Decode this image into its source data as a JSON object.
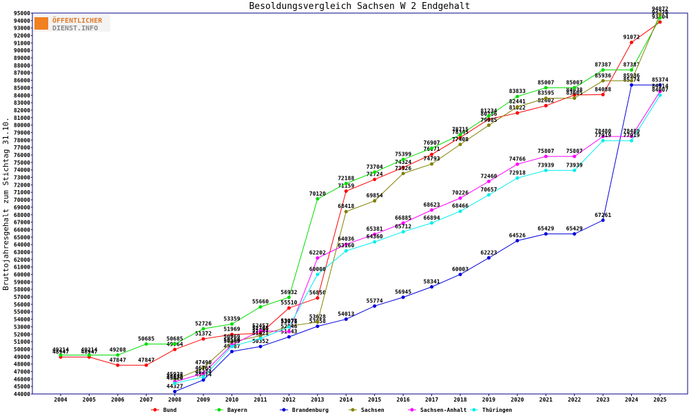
{
  "chart_data": {
    "type": "line",
    "title": "Besoldungsvergleich Sachsen W 2 Endgehalt",
    "y_label": "Bruttojahresgehalt zum Stichtag 31.10.",
    "watermark": [
      "ÖFFENTLICHER",
      "DIENST.INFO"
    ],
    "categories": [
      "2004",
      "2005",
      "2006",
      "2007",
      "2008",
      "2009",
      "2010",
      "2011",
      "2012",
      "2013",
      "2014",
      "2015",
      "2016",
      "2017",
      "2018",
      "2019",
      "2020",
      "2021",
      "2022",
      "2023",
      "2024",
      "2025"
    ],
    "ylim": [
      44000,
      95000
    ],
    "yticks": [
      44000,
      45000,
      46000,
      47000,
      48000,
      49000,
      50000,
      51000,
      52000,
      53000,
      54000,
      55000,
      56000,
      57000,
      58000,
      59000,
      60000,
      61000,
      62000,
      63000,
      64000,
      65000,
      66000,
      67000,
      68000,
      69000,
      70000,
      71000,
      72000,
      73000,
      74000,
      75000,
      76000,
      77000,
      78000,
      79000,
      80000,
      81000,
      82000,
      83000,
      84000,
      85000,
      86000,
      87000,
      88000,
      89000,
      90000,
      91000,
      92000,
      93000,
      94000,
      95000
    ],
    "grid": false,
    "series": [
      {
        "name": "Bund",
        "color": "#ff0000",
        "values": [
          48947,
          48947,
          47847,
          47847,
          49964,
          51372,
          51969,
          52105,
          55510,
          56850,
          71159,
          72724,
          74324,
          76071,
          78345,
          80786,
          81622,
          82602,
          84038,
          84088,
          91072,
          93804
        ]
      },
      {
        "name": "Bayern",
        "color": "#00dd00",
        "values": [
          49214,
          49214,
          49208,
          50685,
          50685,
          52726,
          53359,
          55660,
          56932,
          70120,
          72188,
          73704,
          75399,
          76907,
          78715,
          81234,
          83833,
          85007,
          85007,
          87387,
          87387,
          94370
        ]
      },
      {
        "name": "Brandenburg",
        "color": "#0000dd",
        "values": [
          null,
          null,
          null,
          null,
          44327,
          45874,
          49687,
          50352,
          51643,
          53058,
          54013,
          55774,
          56945,
          58341,
          60003,
          62223,
          64526,
          65429,
          65429,
          67261,
          85374,
          85374
        ]
      },
      {
        "name": "Sachsen",
        "color": "#808000",
        "values": [
          null,
          null,
          null,
          null,
          45938,
          47490,
          50969,
          51793,
          53078,
          53628,
          68418,
          69854,
          73526,
          74793,
          77408,
          79985,
          82441,
          83595,
          83605,
          85936,
          85936,
          94872
        ]
      },
      {
        "name": "Sachsen-Anhalt",
        "color": "#ff00ff",
        "values": [
          null,
          null,
          null,
          null,
          45625,
          46765,
          50569,
          52457,
          52346,
          62202,
          64036,
          65381,
          66885,
          68623,
          70226,
          72460,
          74766,
          75807,
          75807,
          78480,
          78480,
          84514
        ]
      },
      {
        "name": "Thüringen",
        "color": "#00eeee",
        "values": [
          null,
          null,
          null,
          null,
          45420,
          46274,
          50369,
          51421,
          52971,
          60000,
          63160,
          64360,
          65712,
          66894,
          68466,
          70657,
          72918,
          73939,
          73939,
          77919,
          77919,
          84007
        ]
      }
    ]
  }
}
